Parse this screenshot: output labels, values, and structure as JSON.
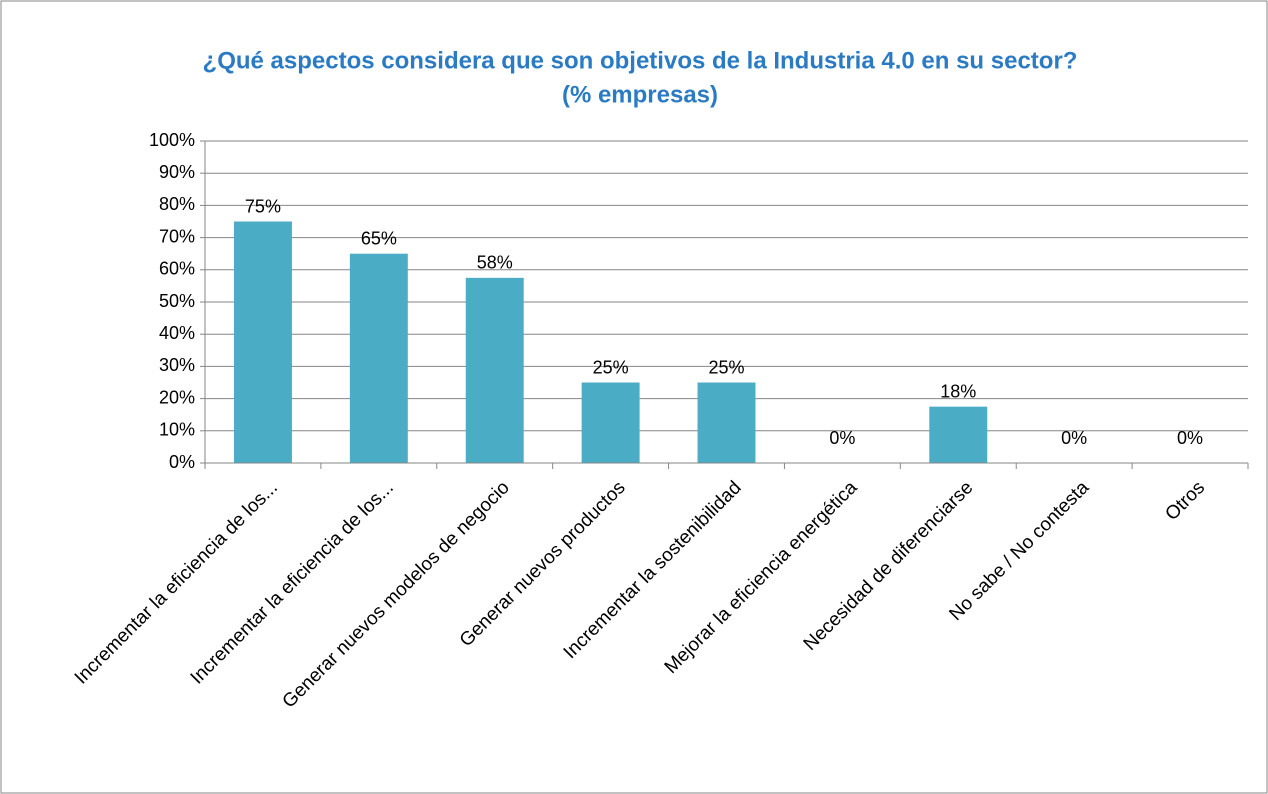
{
  "chart_data": {
    "type": "bar",
    "title": "¿Qué aspectos considera que son objetivos de la Industria 4.0 en su sector?",
    "subtitle": "(% empresas)",
    "categories": [
      "Incrementar la eficiencia de los...",
      "Incrementar la eficiencia de los...",
      "Generar nuevos modelos de negocio",
      "Generar nuevos productos",
      "Incrementar la sostenibilidad",
      "Mejorar la eficiencia energética",
      "Necesidad de diferenciarse",
      "No sabe / No contesta",
      "Otros"
    ],
    "values": [
      75,
      65,
      57.5,
      25,
      25,
      0,
      17.5,
      0,
      0
    ],
    "value_labels": [
      "75%",
      "65%",
      "58%",
      "25%",
      "25%",
      "0%",
      "18%",
      "0%",
      "0%"
    ],
    "color": "#4bacc6",
    "ylim": [
      0,
      100
    ],
    "yticks": [
      {
        "value": 0,
        "label": "0%"
      },
      {
        "value": 10,
        "label": "10%"
      },
      {
        "value": 20,
        "label": "20%"
      },
      {
        "value": 30,
        "label": "30%"
      },
      {
        "value": 40,
        "label": "40%"
      },
      {
        "value": 50,
        "label": "50%"
      },
      {
        "value": 60,
        "label": "60%"
      },
      {
        "value": 70,
        "label": "70%"
      },
      {
        "value": 80,
        "label": "80%"
      },
      {
        "value": 90,
        "label": "90%"
      },
      {
        "value": 100,
        "label": "100%"
      }
    ],
    "grid": true
  }
}
